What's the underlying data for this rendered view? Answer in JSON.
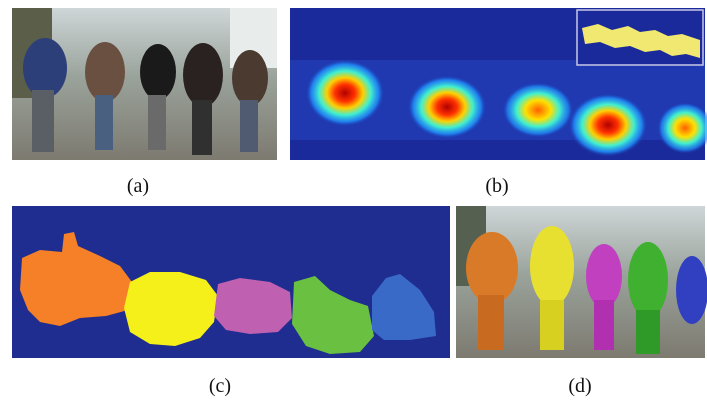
{
  "captions": {
    "a": "(a)",
    "b": "(b)",
    "c": "(c)",
    "d": "(d)"
  }
}
